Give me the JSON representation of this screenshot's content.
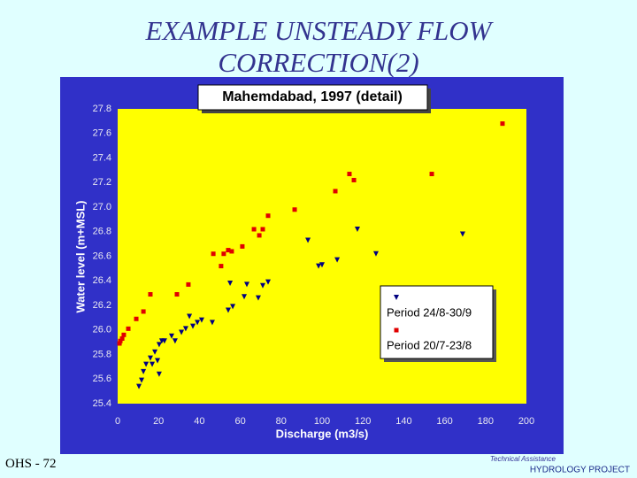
{
  "slide": {
    "title": [
      "EXAMPLE UNSTEADY FLOW",
      "CORRECTION(2)"
    ],
    "footer": "OHS - 72",
    "logo": [
      "Technical Assistance",
      "HYDROLOGY PROJECT"
    ]
  },
  "chart_data": {
    "type": "scatter",
    "title": "Mahemdabad, 1997 (detail)",
    "x_label": "Discharge (m3/s)",
    "y_label": "Water level (m+MSL)",
    "xlim": [
      0,
      200
    ],
    "xticks": [
      0,
      20,
      40,
      60,
      80,
      100,
      120,
      140,
      160,
      180,
      200
    ],
    "ylim": [
      25.4,
      27.8
    ],
    "yticks": [
      25.4,
      25.6,
      25.8,
      {
        "value": 26,
        "label": "26.0"
      },
      26.2,
      26.4,
      26.6,
      26.8,
      {
        "value": 27,
        "label": "27.0"
      },
      27.2,
      27.4,
      27.6,
      27.8
    ],
    "grid": false,
    "series": [
      {
        "name": "Period 24/8-30/9",
        "color": "#000080",
        "marker": "triangle-down",
        "x": [
          10.4,
          11.7,
          12.6,
          13.9,
          16.0,
          16.9,
          18.2,
          19.5,
          20.3,
          20.3,
          21.6,
          22.9,
          26.4,
          28.1,
          31.2,
          33.3,
          35.1,
          36.8,
          39.0,
          41.1,
          46.3,
          54.1,
          56.3,
          55.0,
          61.9,
          63.2,
          68.8,
          71.0,
          73.6,
          93.1,
          98.3,
          100.0,
          107.4,
          117.3,
          126.4,
          168.8
        ],
        "values": [
          25.54,
          25.59,
          25.66,
          25.72,
          25.77,
          25.72,
          25.82,
          25.75,
          25.64,
          25.88,
          25.91,
          25.91,
          25.95,
          25.91,
          25.98,
          26.01,
          26.11,
          26.03,
          26.06,
          26.08,
          26.06,
          26.16,
          26.19,
          26.38,
          26.27,
          26.37,
          26.26,
          26.36,
          26.39,
          26.73,
          26.52,
          26.53,
          26.57,
          26.82,
          26.62,
          26.78
        ]
      },
      {
        "name": "Period 20/7-23/8",
        "color": "#e00000",
        "marker": "square",
        "x": [
          0.9,
          1.3,
          2.2,
          3.0,
          5.2,
          9.1,
          12.6,
          16.0,
          29.0,
          34.6,
          46.8,
          50.6,
          51.9,
          54.1,
          55.8,
          61.0,
          66.7,
          69.3,
          71.0,
          73.6,
          86.6,
          106.5,
          113.4,
          115.6,
          153.7,
          188.3
        ],
        "values": [
          25.89,
          25.91,
          25.93,
          25.96,
          26.01,
          26.09,
          26.15,
          26.29,
          26.29,
          26.37,
          26.62,
          26.52,
          26.62,
          26.65,
          26.64,
          26.68,
          26.82,
          26.77,
          26.82,
          26.93,
          26.98,
          27.13,
          27.27,
          27.22,
          27.27,
          27.68
        ]
      }
    ]
  }
}
